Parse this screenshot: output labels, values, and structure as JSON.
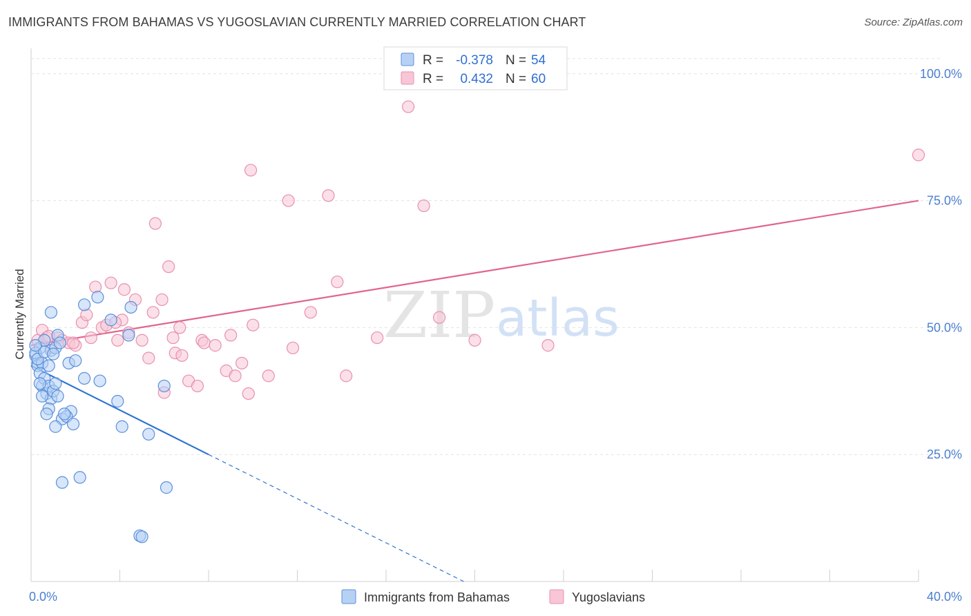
{
  "header": {
    "title": "IMMIGRANTS FROM BAHAMAS VS YUGOSLAVIAN CURRENTLY MARRIED CORRELATION CHART",
    "source": "Source: ZipAtlas.com"
  },
  "colors": {
    "blue_fill": "#b7d1f5",
    "blue_stroke": "#5b8fd9",
    "blue_line": "#2f74d0",
    "pink_fill": "#f8c6d6",
    "pink_stroke": "#e890ad",
    "pink_line": "#e0648f",
    "tick_text": "#4a7fcf",
    "grid": "#e3e3e3"
  },
  "legend": {
    "r_label": "R =",
    "n_label": "N =",
    "blue": {
      "r": "-0.378",
      "n": "54"
    },
    "pink": {
      "r": "0.432",
      "n": "60"
    }
  },
  "watermark": {
    "zip": "ZIP",
    "atlas": "atlas"
  },
  "chart_data": {
    "type": "scatter",
    "xlabel": "",
    "ylabel": "Currently Married",
    "xlim": [
      0,
      40
    ],
    "ylim": [
      0,
      105
    ],
    "x_tick_labels": [
      "0.0%",
      "40.0%"
    ],
    "y_ticks": [
      25,
      50,
      75,
      100
    ],
    "y_tick_labels": [
      "25.0%",
      "50.0%",
      "75.0%",
      "100.0%"
    ],
    "grid": "horizontal dashed",
    "legend_position": "top-center",
    "series": [
      {
        "name": "Immigrants from Bahamas",
        "color": "blue",
        "trend": {
          "x_start": 0,
          "y_start": 42.5,
          "x_solid_end": 8,
          "y_solid_end": 25,
          "x_dash_end": 19.5,
          "y_dash_end": 0
        },
        "points": [
          [
            0.2,
            44.5
          ],
          [
            0.3,
            43
          ],
          [
            0.4,
            46
          ],
          [
            0.3,
            42.5
          ],
          [
            0.2,
            45
          ],
          [
            0.5,
            43
          ],
          [
            0.6,
            47.5
          ],
          [
            0.4,
            41
          ],
          [
            0.8,
            42.5
          ],
          [
            0.9,
            45.5
          ],
          [
            1.2,
            48.5
          ],
          [
            1.1,
            46
          ],
          [
            0.9,
            53
          ],
          [
            2.4,
            54.5
          ],
          [
            3.0,
            56
          ],
          [
            3.6,
            51.5
          ],
          [
            4.5,
            54
          ],
          [
            4.4,
            48.5
          ],
          [
            0.5,
            38.5
          ],
          [
            0.6,
            40
          ],
          [
            0.7,
            37
          ],
          [
            0.8,
            38.5
          ],
          [
            0.9,
            36
          ],
          [
            1.0,
            37.5
          ],
          [
            1.1,
            39
          ],
          [
            0.8,
            34
          ],
          [
            0.7,
            33
          ],
          [
            1.2,
            36.5
          ],
          [
            1.8,
            33.5
          ],
          [
            1.4,
            32
          ],
          [
            1.6,
            32.5
          ],
          [
            1.9,
            31
          ],
          [
            2.4,
            40
          ],
          [
            3.1,
            39.5
          ],
          [
            1.7,
            43
          ],
          [
            3.9,
            35.5
          ],
          [
            4.1,
            30.5
          ],
          [
            5.3,
            29
          ],
          [
            6.0,
            38.5
          ],
          [
            1.4,
            19.5
          ],
          [
            2.2,
            20.5
          ],
          [
            6.1,
            18.5
          ],
          [
            4.9,
            9
          ],
          [
            5.0,
            8.8
          ],
          [
            1.5,
            33
          ],
          [
            1.1,
            30.5
          ],
          [
            0.3,
            43.8
          ],
          [
            0.6,
            45.2
          ],
          [
            1.0,
            44.8
          ],
          [
            0.4,
            39
          ],
          [
            1.3,
            47
          ],
          [
            2.0,
            43.5
          ],
          [
            0.2,
            46.5
          ],
          [
            0.5,
            36.5
          ]
        ]
      },
      {
        "name": "Yugoslavians",
        "color": "pink",
        "trend": {
          "x_start": 0,
          "y_start": 46.5,
          "x_end": 40,
          "y_end": 75
        },
        "points": [
          [
            0.3,
            47.5
          ],
          [
            0.5,
            49.5
          ],
          [
            0.7,
            48
          ],
          [
            0.9,
            46
          ],
          [
            1.2,
            48
          ],
          [
            1.4,
            47.5
          ],
          [
            1.7,
            47
          ],
          [
            2.0,
            46.5
          ],
          [
            2.3,
            51
          ],
          [
            2.5,
            52.5
          ],
          [
            2.7,
            48
          ],
          [
            2.9,
            58
          ],
          [
            3.2,
            50
          ],
          [
            3.4,
            50.5
          ],
          [
            3.6,
            58.8
          ],
          [
            3.9,
            47.5
          ],
          [
            4.1,
            51.5
          ],
          [
            4.2,
            57.5
          ],
          [
            4.4,
            49
          ],
          [
            4.7,
            55.5
          ],
          [
            5.0,
            47.5
          ],
          [
            5.3,
            44
          ],
          [
            5.5,
            53
          ],
          [
            5.6,
            70.5
          ],
          [
            5.9,
            55.5
          ],
          [
            6.2,
            62
          ],
          [
            6.4,
            48
          ],
          [
            6.5,
            45
          ],
          [
            6.8,
            44.5
          ],
          [
            6.7,
            50
          ],
          [
            7.1,
            39.5
          ],
          [
            7.5,
            38.5
          ],
          [
            7.7,
            47.5
          ],
          [
            7.8,
            47
          ],
          [
            8.3,
            46.5
          ],
          [
            8.8,
            41.5
          ],
          [
            9.0,
            48.5
          ],
          [
            9.2,
            40.5
          ],
          [
            9.5,
            43
          ],
          [
            9.8,
            37
          ],
          [
            10.0,
            50.5
          ],
          [
            9.9,
            81
          ],
          [
            10.7,
            40.5
          ],
          [
            11.6,
            75
          ],
          [
            11.8,
            46
          ],
          [
            12.6,
            53
          ],
          [
            13.4,
            76
          ],
          [
            13.8,
            59
          ],
          [
            14.2,
            40.5
          ],
          [
            15.6,
            48
          ],
          [
            17.0,
            93.5
          ],
          [
            17.7,
            74
          ],
          [
            18.4,
            52
          ],
          [
            20.0,
            47.5
          ],
          [
            23.3,
            46.5
          ],
          [
            40.0,
            84
          ],
          [
            0.8,
            48.3
          ],
          [
            1.9,
            47
          ],
          [
            3.8,
            51
          ],
          [
            6.0,
            37.2
          ]
        ]
      }
    ]
  },
  "bottom_legend": [
    {
      "label": "Immigrants from Bahamas"
    },
    {
      "label": "Yugoslavians"
    }
  ]
}
